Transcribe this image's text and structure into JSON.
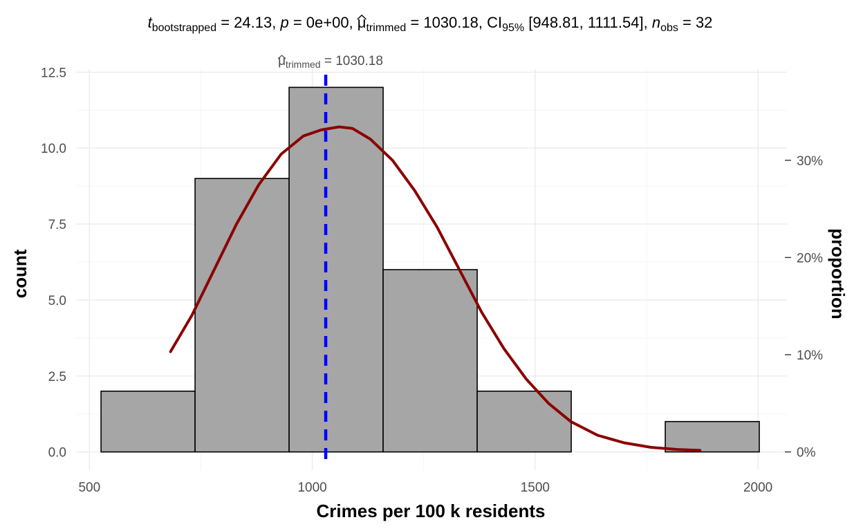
{
  "chart_data": {
    "type": "bar",
    "subtitle": {
      "t_label": "t",
      "t_sub": "bootstrapped",
      "t_value": " = 24.13, ",
      "p_label": "p",
      "p_value": " = 0e+00, ",
      "mu_label": "μ",
      "mu_sub": "trimmed",
      "mu_value": " = 1030.18, CI",
      "ci_sub": "95%",
      "ci_value": " [948.81, 1111.54], ",
      "n_label": "n",
      "n_sub": "obs",
      "n_value": " = 32"
    },
    "xlabel": "Crimes per 100 k residents",
    "ylabel": "count",
    "ylabel_right": "proportion",
    "xlim": [
      470,
      2065
    ],
    "ylim": [
      -0.6,
      12.6
    ],
    "x_ticks": [
      {
        "value": 500,
        "label": "500"
      },
      {
        "value": 1000,
        "label": "1000"
      },
      {
        "value": 1500,
        "label": "1500"
      },
      {
        "value": 2000,
        "label": "2000"
      }
    ],
    "y_ticks": [
      {
        "value": 0,
        "label": "0.0"
      },
      {
        "value": 2.5,
        "label": "2.5"
      },
      {
        "value": 5,
        "label": "5.0"
      },
      {
        "value": 7.5,
        "label": "7.5"
      },
      {
        "value": 10,
        "label": "10.0"
      },
      {
        "value": 12.5,
        "label": "12.5"
      }
    ],
    "y_right_ticks": [
      {
        "value": 0,
        "label": "0%"
      },
      {
        "value": 0.1,
        "label": "10%"
      },
      {
        "value": 0.2,
        "label": "20%"
      },
      {
        "value": 0.3,
        "label": "30%"
      }
    ],
    "n_obs": 32,
    "bins": [
      {
        "x0": 526,
        "x1": 737,
        "count": 2
      },
      {
        "x0": 737,
        "x1": 948,
        "count": 9
      },
      {
        "x0": 948,
        "x1": 1159,
        "count": 12
      },
      {
        "x0": 1159,
        "x1": 1370,
        "count": 6
      },
      {
        "x0": 1370,
        "x1": 1581,
        "count": 2
      },
      {
        "x0": 1581,
        "x1": 1792,
        "count": 0
      },
      {
        "x0": 1792,
        "x1": 2003,
        "count": 1
      }
    ],
    "density_curve": {
      "x": [
        682,
        730,
        780,
        830,
        880,
        930,
        980,
        1020,
        1060,
        1090,
        1130,
        1180,
        1230,
        1280,
        1330,
        1380,
        1430,
        1480,
        1530,
        1580,
        1640,
        1700,
        1760,
        1820,
        1870
      ],
      "y": [
        3.3,
        4.5,
        6.0,
        7.5,
        8.8,
        9.8,
        10.4,
        10.6,
        10.7,
        10.65,
        10.3,
        9.6,
        8.6,
        7.4,
        6.0,
        4.6,
        3.4,
        2.4,
        1.6,
        1.0,
        0.55,
        0.3,
        0.15,
        0.08,
        0.05
      ]
    },
    "mean_line": {
      "value": 1030.18,
      "label_mu": "μ",
      "label_sub": "trimmed",
      "label_value": " = 1030.18"
    },
    "colors": {
      "bar_fill": "#a6a6a6",
      "bar_stroke": "#000000",
      "curve": "#8b0000",
      "mean_line": "#0000ff",
      "grid_major": "#ebebeb",
      "grid_minor": "#f5f5f5"
    },
    "grid": true
  }
}
